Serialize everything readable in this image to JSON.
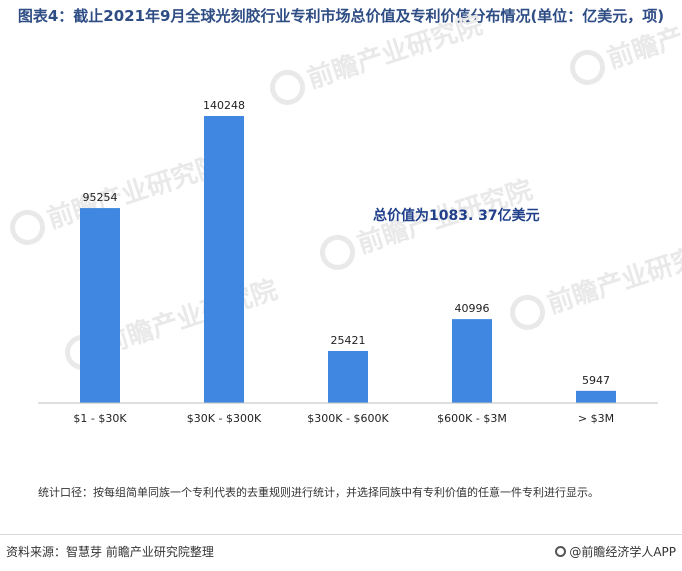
{
  "title": "图表4：截止2021年9月全球光刻胶行业专利市场总价值及专利价值分布情况(单位：亿美元，项)",
  "chart_data": {
    "type": "bar",
    "categories": [
      "$1 - $30K",
      "$30K - $300K",
      "$300K - $600K",
      "$600K - $3M",
      "> $3M"
    ],
    "values": [
      95254,
      140248,
      25421,
      40996,
      5947
    ],
    "annotation": "总价值为1083. 37亿美元",
    "ylim": [
      0,
      140248
    ],
    "grid": false,
    "legend": "none",
    "bar_color": "#3f87e0"
  },
  "note": "统计口径：按每组简单同族一个专利代表的去重规则进行统计，并选择同族中有专利价值的任意一件专利进行显示。",
  "source": "资料来源：智慧芽 前瞻产业研究院整理",
  "brand": "@前瞻经济学人APP",
  "watermark_text": "前瞻产业研究院",
  "colors": {
    "title": "#2e4d84",
    "bar": "#3f87e0",
    "annotation": "#1f3f8a"
  }
}
